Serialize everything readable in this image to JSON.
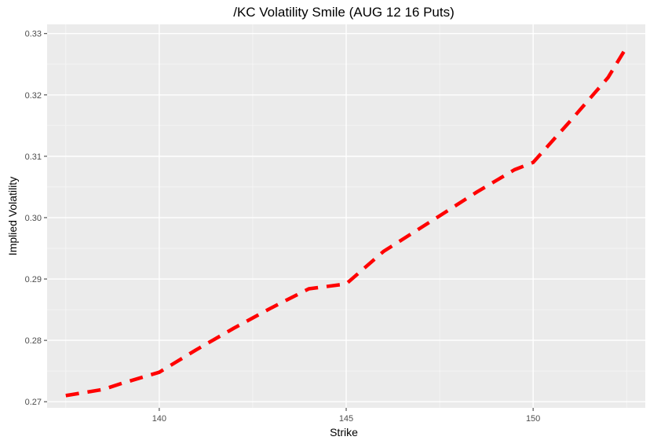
{
  "chart_data": {
    "type": "line",
    "title": "/KC Volatility Smile (AUG 12 16 Puts)",
    "xlabel": "Strike",
    "ylabel": "Implied Volatility",
    "xlim": [
      137,
      153
    ],
    "ylim": [
      0.269,
      0.3315
    ],
    "x_ticks": [
      140,
      145,
      150
    ],
    "y_ticks": [
      0.27,
      0.28,
      0.29,
      0.3,
      0.31,
      0.32,
      0.33
    ],
    "x_tick_labels": [
      "140",
      "145",
      "150"
    ],
    "y_tick_labels": [
      "0.27",
      "0.28",
      "0.29",
      "0.30",
      "0.31",
      "0.32",
      "0.33"
    ],
    "grid": true,
    "series": [
      {
        "color": "#ff0000",
        "line_style": "dashed",
        "x": [
          137.5,
          138.5,
          139.0,
          140.0,
          141.0,
          142.0,
          143.0,
          144.0,
          145.0,
          146.0,
          147.5,
          148.5,
          149.5,
          150.0,
          151.0,
          152.0,
          152.5
        ],
        "y": [
          0.271,
          0.272,
          0.273,
          0.2748,
          0.2785,
          0.282,
          0.2853,
          0.2884,
          0.2892,
          0.2945,
          0.3003,
          0.3042,
          0.3078,
          0.309,
          0.3158,
          0.3228,
          0.3278
        ]
      }
    ]
  }
}
